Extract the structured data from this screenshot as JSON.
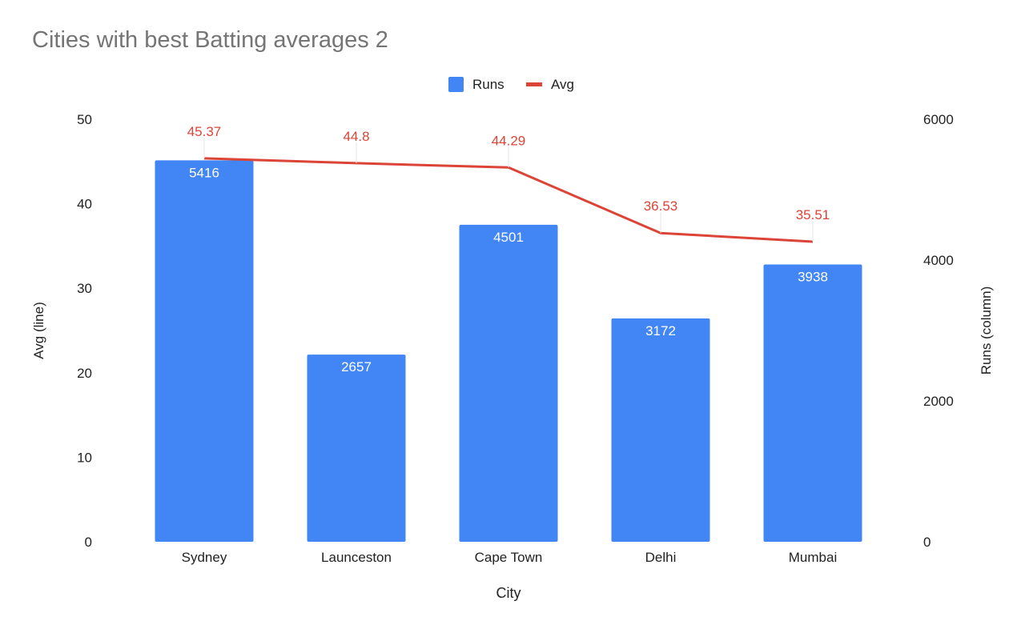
{
  "chart_data": {
    "type": "bar",
    "title": "Cities with best Batting averages 2",
    "xlabel": "City",
    "ylabel_left": "Avg (line)",
    "ylabel_right": "Runs (column)",
    "categories": [
      "Sydney",
      "Launceston",
      "Cape Town",
      "Delhi",
      "Mumbai"
    ],
    "series": [
      {
        "name": "Runs",
        "type": "bar",
        "axis": "right",
        "color": "#4285F4",
        "values": [
          5416,
          2657,
          4501,
          3172,
          3938
        ],
        "labels": [
          "5416",
          "2657",
          "4501",
          "3172",
          "3938"
        ]
      },
      {
        "name": "Avg",
        "type": "line",
        "axis": "left",
        "color": "#DB4437",
        "values": [
          45.37,
          44.8,
          44.29,
          36.53,
          35.51
        ],
        "labels": [
          "45.37",
          "44.8",
          "44.29",
          "36.53",
          "35.51"
        ]
      }
    ],
    "left_axis": {
      "range": [
        0,
        50
      ],
      "ticks": [
        "0",
        "10",
        "20",
        "30",
        "40",
        "50"
      ]
    },
    "right_axis": {
      "range": [
        0,
        6000
      ],
      "ticks": [
        "0",
        "2000",
        "4000",
        "6000"
      ]
    },
    "legend": {
      "position": "top",
      "items": [
        "Runs",
        "Avg"
      ]
    },
    "grid": false
  }
}
